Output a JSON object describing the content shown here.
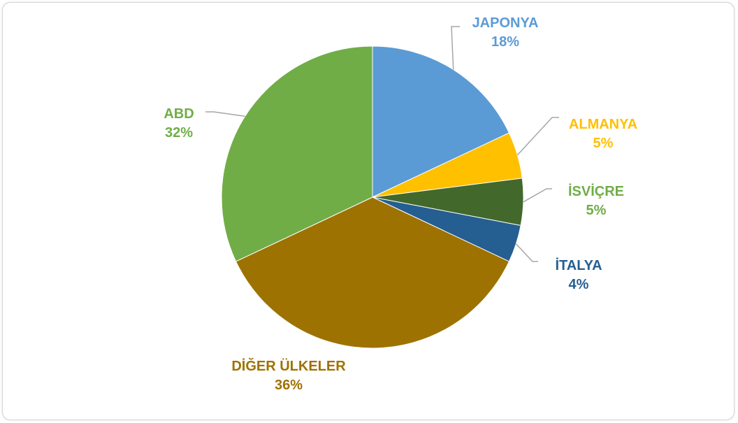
{
  "chart_data": {
    "type": "pie",
    "slices": [
      {
        "label": "JAPONYA",
        "value": 18,
        "value_label": "18%",
        "color": "#5b9bd5",
        "label_color": "#5b9bd5"
      },
      {
        "label": "ALMANYA",
        "value": 5,
        "value_label": "5%",
        "color": "#ffc000",
        "label_color": "#ffc000"
      },
      {
        "label": "İSVİÇRE",
        "value": 5,
        "value_label": "5%",
        "color": "#43682b",
        "label_color": "#70ad47"
      },
      {
        "label": "İTALYA",
        "value": 4,
        "value_label": "4%",
        "color": "#255e91",
        "label_color": "#255e91"
      },
      {
        "label": "DİĞER ÜLKELER",
        "value": 36,
        "value_label": "36%",
        "color": "#9e7200",
        "label_color": "#9e7200"
      },
      {
        "label": "ABD",
        "value": 32,
        "value_label": "32%",
        "color": "#70ad47",
        "label_color": "#70ad47"
      }
    ],
    "leader_line_color": "#a6a6a6"
  }
}
